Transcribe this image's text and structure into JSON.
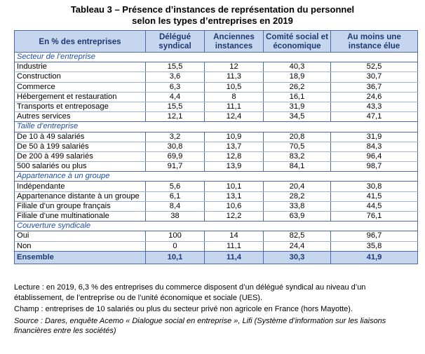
{
  "title": {
    "line1": "Tableau 3 – Présence d’instances de représentation du personnel",
    "line2": "selon les types d’entreprises en 2019"
  },
  "headers": {
    "col0": "En % des entreprises",
    "col1": "Délégué syndical",
    "col2": "Anciennes instances",
    "col3": "Comité social et économique",
    "col4": "Au moins une instance élue"
  },
  "sections": [
    {
      "title": "Secteur de l’entreprise",
      "rows": [
        {
          "label": "Industrie",
          "v1": "15,5",
          "v2": "12",
          "v3": "40,3",
          "v4": "52,5"
        },
        {
          "label": "Construction",
          "v1": "3,6",
          "v2": "11,3",
          "v3": "18,9",
          "v4": "30,7"
        },
        {
          "label": "Commerce",
          "v1": "6,3",
          "v2": "10,5",
          "v3": "26,2",
          "v4": "36,7"
        },
        {
          "label": "Hébergement et restauration",
          "v1": "4,4",
          "v2": "8",
          "v3": "16,1",
          "v4": "24,6"
        },
        {
          "label": "Transports et entreposage",
          "v1": "15,5",
          "v2": "11,1",
          "v3": "31,9",
          "v4": "43,3"
        },
        {
          "label": "Autres services",
          "v1": "12,1",
          "v2": "12,4",
          "v3": "34,5",
          "v4": "47,1"
        }
      ]
    },
    {
      "title": "Taille d’entreprise",
      "rows": [
        {
          "label": "De 10 à 49 salariés",
          "v1": "3,2",
          "v2": "10,9",
          "v3": "20,8",
          "v4": "31,9"
        },
        {
          "label": "De 50 à 199 salariés",
          "v1": "30,8",
          "v2": "13,7",
          "v3": "70,5",
          "v4": "84,3"
        },
        {
          "label": "De 200 à 499 salariés",
          "v1": "69,9",
          "v2": "12,8",
          "v3": "83,2",
          "v4": "96,4"
        },
        {
          "label": "500 salariés ou plus",
          "v1": "91,7",
          "v2": "13,9",
          "v3": "84,1",
          "v4": "98,7"
        }
      ]
    },
    {
      "title": "Appartenance à un groupe",
      "rows": [
        {
          "label": "Indépendante",
          "v1": "5,6",
          "v2": "10,1",
          "v3": "20,4",
          "v4": "30,8"
        },
        {
          "label": "Appartenance distante à un groupe",
          "v1": "6,1",
          "v2": "13,1",
          "v3": "28,2",
          "v4": "41,5"
        },
        {
          "label": "Filiale d’un groupe français",
          "v1": "8,4",
          "v2": "10,6",
          "v3": "33,8",
          "v4": "44,5"
        },
        {
          "label": "Filiale d’une multinationale",
          "v1": "38",
          "v2": "12,2",
          "v3": "63,9",
          "v4": "76,1"
        }
      ]
    },
    {
      "title": "Couverture syndicale",
      "rows": [
        {
          "label": "Oui",
          "v1": "100",
          "v2": "14",
          "v3": "82,5",
          "v4": "96,7"
        },
        {
          "label": "Non",
          "v1": "0",
          "v2": "11,1",
          "v3": "24,4",
          "v4": "35,8"
        }
      ]
    }
  ],
  "total": {
    "label": "Ensemble",
    "v1": "10,1",
    "v2": "11,4",
    "v3": "30,3",
    "v4": "41,9"
  },
  "notes": {
    "lecture": "Lecture : en 2019, 6,3 % des entreprises du commerce disposent d’un délégué syndical au niveau d’un établissement, de l’entreprise ou de l’unité économique et sociale (UES).",
    "champ": "Champ : entreprises de 10 salariés ou plus du secteur privé non agricole en France (hors Mayotte).",
    "source": "Source : Dares, enquête Acemo « Dialogue social en entreprise », Lifi (Système d’information sur les liaisons financières entre les sociétés)"
  }
}
